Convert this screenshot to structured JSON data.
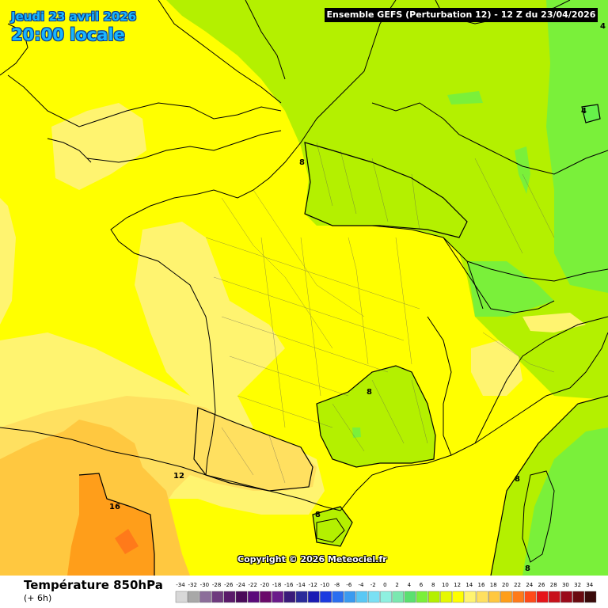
{
  "header": {
    "date_label": "Jeudi 23 avril 2026",
    "time_label": "20:00 locale",
    "run_label": "Ensemble GEFS  (Perturbation 12)  -  12 Z du 23/04/2026"
  },
  "copyright": "Copyright © 2026 Meteociel.fr",
  "variable": {
    "title": "Température 850hPa",
    "subtitle": "(+ 6h)"
  },
  "legend": {
    "ticks": [
      "-34",
      "-32",
      "-30",
      "-28",
      "-26",
      "-24",
      "-22",
      "-20",
      "-18",
      "-16",
      "-14",
      "-12",
      "-10",
      "-8",
      "-6",
      "-4",
      "-2",
      "0",
      "2",
      "4",
      "6",
      "8",
      "10",
      "12",
      "14",
      "16",
      "18",
      "20",
      "22",
      "24",
      "26",
      "28",
      "30",
      "32",
      "34"
    ],
    "colors": [
      "#d8d8d8",
      "#a8a8a8",
      "#8c6e9a",
      "#6e3a7e",
      "#5a1a6a",
      "#4a0a5a",
      "#5a0a7a",
      "#6a0a6a",
      "#6a1a8a",
      "#3a1a7a",
      "#2a2a9a",
      "#1a1ab4",
      "#1a3ae0",
      "#2a6ef0",
      "#3a9af0",
      "#5ac8f4",
      "#7ae0f4",
      "#8ef0e0",
      "#7ae8b0",
      "#5ae070",
      "#7af03a",
      "#b4f000",
      "#e6f800",
      "#ffff00",
      "#fff470",
      "#ffe060",
      "#ffc840",
      "#ff9e1a",
      "#ff7a1a",
      "#ff4a1a",
      "#e6141a",
      "#c8101a",
      "#9a0a1a",
      "#6a0a10",
      "#3a0a0a"
    ]
  },
  "map": {
    "region": "France",
    "contour_labels": [
      {
        "value": "4",
        "id": "label-4-topright"
      },
      {
        "value": "4",
        "id": "label-4-east"
      },
      {
        "value": "8",
        "id": "label-8-north"
      },
      {
        "value": "8",
        "id": "label-8-center"
      },
      {
        "value": "8",
        "id": "label-8-south"
      },
      {
        "value": "8",
        "id": "label-8-corsica"
      },
      {
        "value": "8",
        "id": "label-8-bottom"
      },
      {
        "value": "12",
        "id": "label-12"
      },
      {
        "value": "16",
        "id": "label-16"
      }
    ],
    "colors": {
      "temp_4": "#66f24a",
      "temp_6": "#7af03a",
      "temp_8": "#b4f000",
      "temp_10": "#e6f800",
      "temp_12": "#ffff00",
      "temp_14": "#fff470",
      "temp_16": "#ffe060",
      "temp_18": "#ffc840",
      "temp_20": "#ff9e1a",
      "temp_22": "#ff7a1a"
    }
  }
}
